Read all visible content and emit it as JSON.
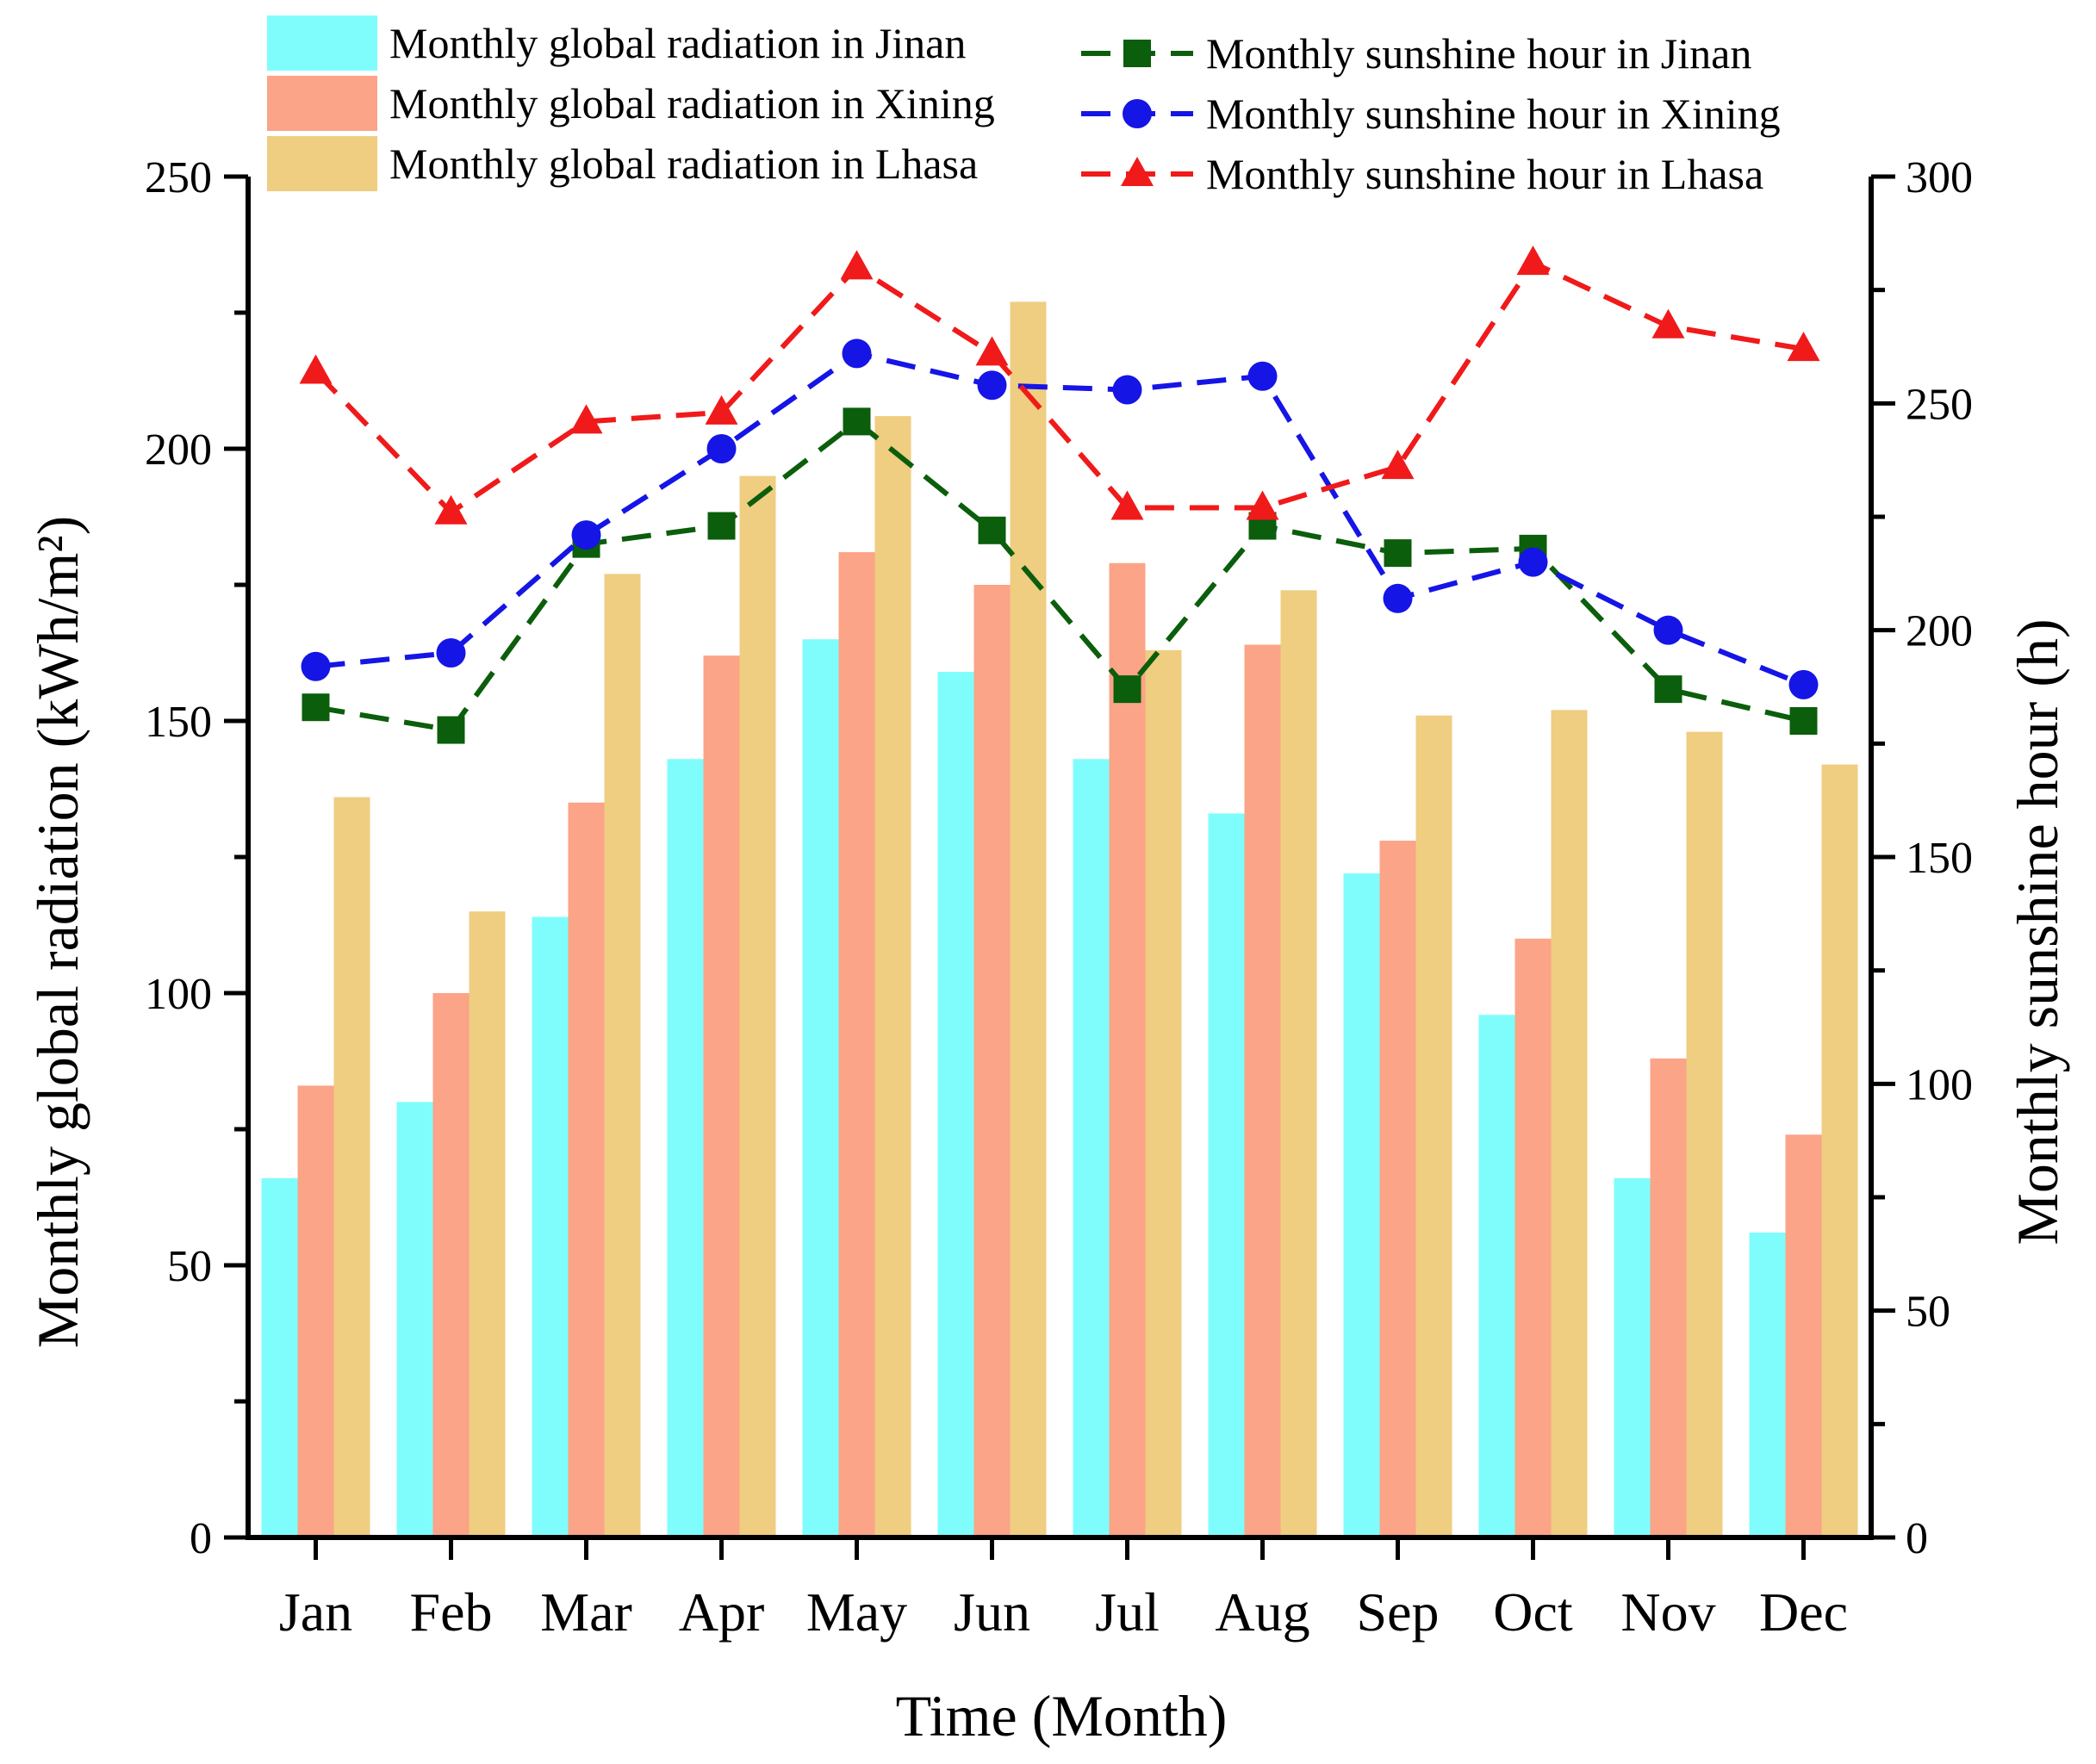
{
  "chart_data": {
    "type": "bar",
    "categories": [
      "Jan",
      "Feb",
      "Mar",
      "Apr",
      "May",
      "Jun",
      "Jul",
      "Aug",
      "Sep",
      "Oct",
      "Nov",
      "Dec"
    ],
    "bar_series": [
      {
        "name": "Monthly global radiation in Jinan",
        "color": "#7ffdfd",
        "values": [
          66,
          80,
          114,
          143,
          165,
          159,
          143,
          133,
          122,
          96,
          66,
          56
        ]
      },
      {
        "name": "Monthly global radiation in Xining",
        "color": "#fba487",
        "values": [
          83,
          100,
          135,
          162,
          181,
          175,
          179,
          164,
          128,
          110,
          88,
          74
        ]
      },
      {
        "name": "Monthly global radiation in Lhasa",
        "color": "#efcd81",
        "values": [
          136,
          115,
          177,
          195,
          206,
          227,
          163,
          174,
          151,
          152,
          148,
          142
        ]
      }
    ],
    "line_series": [
      {
        "name": "Monthly sunshine hour in Jinan",
        "color": "#0b5e0b",
        "marker": "square",
        "values": [
          183,
          178,
          219,
          223,
          246,
          222,
          187,
          223,
          217,
          218,
          187,
          180
        ]
      },
      {
        "name": "Monthly sunshine hour in Xining",
        "color": "#1515e6",
        "marker": "circle",
        "values": [
          192,
          195,
          221,
          240,
          261,
          254,
          253,
          256,
          207,
          215,
          200,
          188
        ]
      },
      {
        "name": "Monthly sunshine hour in Lhasa",
        "color": "#f01a1a",
        "marker": "triangle",
        "values": [
          257,
          226,
          246,
          248,
          280,
          261,
          227,
          227,
          236,
          281,
          267,
          262
        ]
      }
    ],
    "xlabel": "Time (Month)",
    "ylabel": "Monthly global radiation (kWh/m²)",
    "y2label": "Monthly sunshine hour (h)",
    "ylim": [
      0,
      250
    ],
    "y2lim": [
      0,
      300
    ],
    "yticks": [
      "0",
      "50",
      "100",
      "150",
      "200",
      "250"
    ],
    "y2ticks": [
      "0",
      "50",
      "100",
      "150",
      "200",
      "250",
      "300"
    ],
    "legend": "top"
  }
}
